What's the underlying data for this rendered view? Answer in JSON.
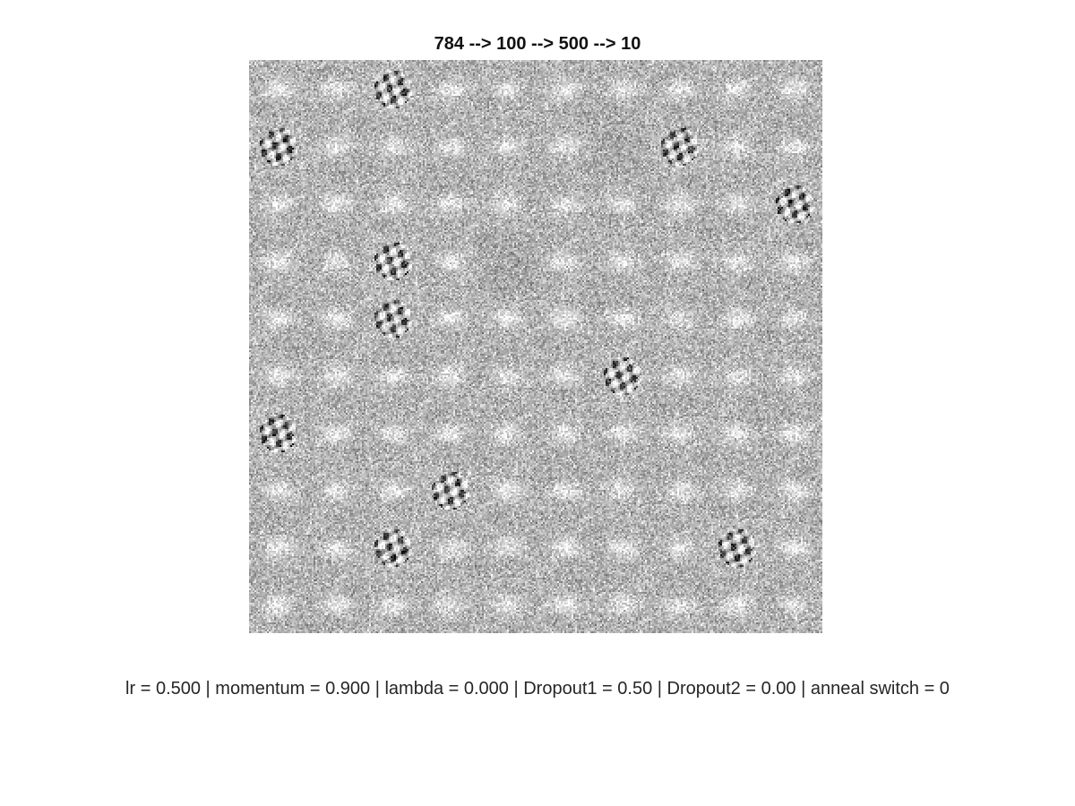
{
  "figure": {
    "title": "784 --> 100 --> 500 --> 10",
    "caption": "lr = 0.500 | momentum = 0.900 | lambda = 0.000 | Dropout1 = 0.50 | Dropout2 = 0.00 | anneal switch = 0"
  },
  "weights_grid": {
    "rows": 10,
    "cols": 10,
    "colormap": "gray",
    "background_color": "#bdbdbd",
    "digit_like_tiles": [
      {
        "row": 0,
        "col": 2
      },
      {
        "row": 1,
        "col": 0
      },
      {
        "row": 1,
        "col": 7
      },
      {
        "row": 2,
        "col": 9
      },
      {
        "row": 3,
        "col": 2
      },
      {
        "row": 4,
        "col": 2
      },
      {
        "row": 5,
        "col": 6
      },
      {
        "row": 6,
        "col": 0
      },
      {
        "row": 7,
        "col": 3
      },
      {
        "row": 8,
        "col": 2
      },
      {
        "row": 8,
        "col": 8
      }
    ],
    "faint_tiles": [
      {
        "row": 1,
        "col": 6
      },
      {
        "row": 3,
        "col": 4
      }
    ]
  }
}
